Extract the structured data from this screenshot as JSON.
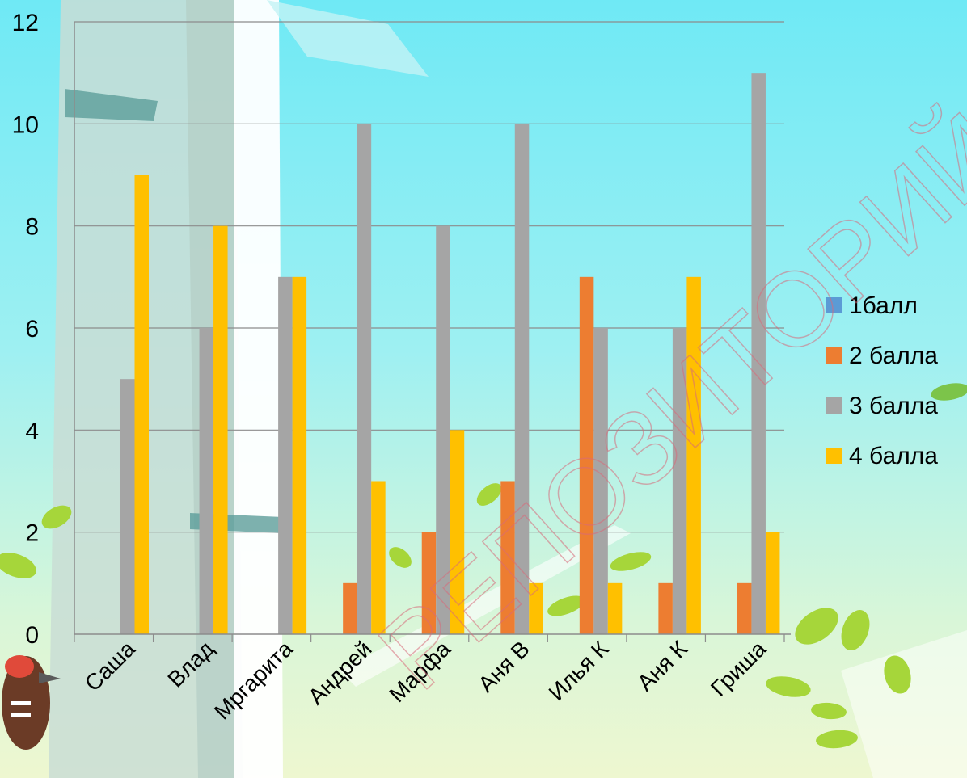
{
  "watermark": "РЕПОЗИТОРИЙ Б",
  "chart_data": {
    "type": "bar",
    "title": "",
    "xlabel": "",
    "ylabel": "",
    "ylim": [
      0,
      12
    ],
    "yticks": [
      0,
      2,
      4,
      6,
      8,
      10,
      12
    ],
    "grid": true,
    "legend_position": "right",
    "categories": [
      "Саша",
      "Влад",
      "Мргарита",
      "Андрей",
      "Марфа",
      "Аня В",
      "Илья К",
      "Аня К",
      "Гриша"
    ],
    "series": [
      {
        "name": "1балл",
        "color": "#5b9bd5",
        "values": [
          0,
          0,
          0,
          0,
          0,
          0,
          0,
          0,
          0
        ]
      },
      {
        "name": "2 балла",
        "color": "#ed7d31",
        "values": [
          0,
          0,
          0,
          1,
          2,
          3,
          7,
          1,
          1
        ]
      },
      {
        "name": "3 балла",
        "color": "#a5a5a5",
        "values": [
          5,
          6,
          7,
          10,
          8,
          10,
          6,
          6,
          11
        ]
      },
      {
        "name": "4 балла",
        "color": "#ffc000",
        "values": [
          9,
          8,
          7,
          3,
          4,
          1,
          1,
          7,
          2
        ]
      }
    ]
  }
}
